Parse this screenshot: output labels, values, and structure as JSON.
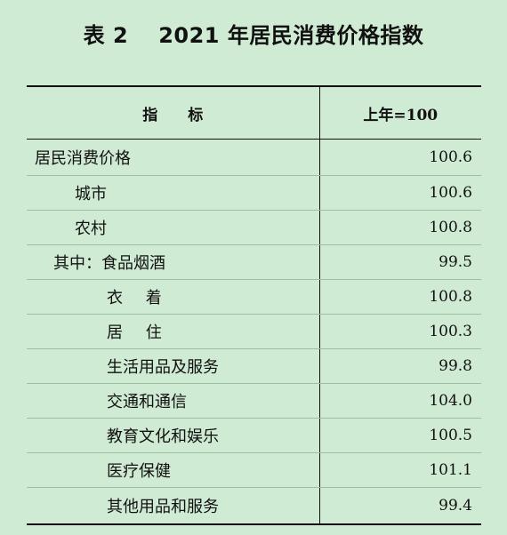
{
  "title": {
    "label": "表 2",
    "text": "2021 年居民消费价格指数"
  },
  "table": {
    "header": {
      "indicator": "指　　标",
      "base": "上年=100"
    },
    "rows": [
      {
        "name": "居民消费价格",
        "value": "100.6"
      },
      {
        "name": "城市",
        "value": "100.6"
      },
      {
        "name": "农村",
        "value": "100.8"
      },
      {
        "name": "其中：食品烟酒",
        "value": "99.5"
      },
      {
        "name": "衣 着",
        "value": "100.8"
      },
      {
        "name": "居 住",
        "value": "100.3"
      },
      {
        "name": "生活用品及服务",
        "value": "99.8"
      },
      {
        "name": "交通和通信",
        "value": "104.0"
      },
      {
        "name": "教育文化和娱乐",
        "value": "100.5"
      },
      {
        "name": "医疗保健",
        "value": "101.1"
      },
      {
        "name": "其他用品和服务",
        "value": "99.4"
      }
    ]
  }
}
